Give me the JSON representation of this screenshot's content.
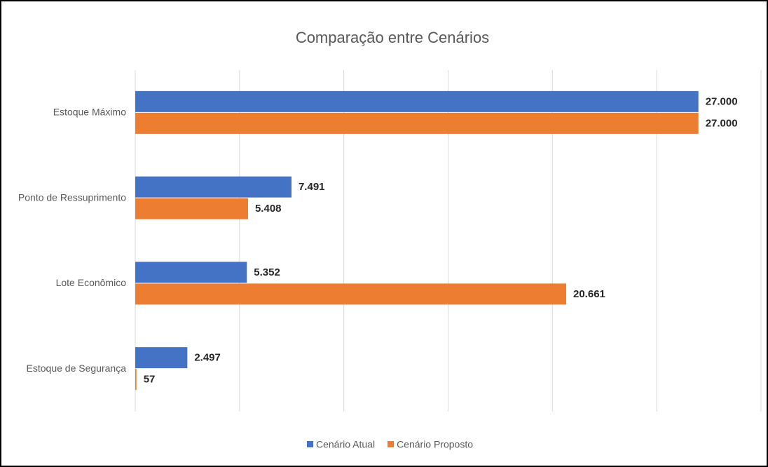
{
  "chart_data": {
    "type": "barh",
    "title": "Comparação entre Cenários",
    "categories": [
      "Estoque Máximo",
      "Ponto de Ressuprimento",
      "Lote Econômico",
      "Estoque de Segurança"
    ],
    "series": [
      {
        "name": "Cenário Atual",
        "color": "#4472c4",
        "values": [
          27000,
          7491,
          5352,
          2497
        ],
        "value_labels": [
          "27.000",
          "7.491",
          "5.352",
          "2.497"
        ]
      },
      {
        "name": "Cenário Proposto",
        "color": "#ed7d31",
        "values": [
          27000,
          5408,
          20661,
          57
        ],
        "value_labels": [
          "27.000",
          "5.408",
          "20.661",
          "57"
        ]
      }
    ],
    "xlim": [
      0,
      30000
    ],
    "xticks": [
      0,
      5000,
      10000,
      15000,
      20000,
      25000,
      30000
    ],
    "grid": true,
    "legend": "bottom"
  }
}
